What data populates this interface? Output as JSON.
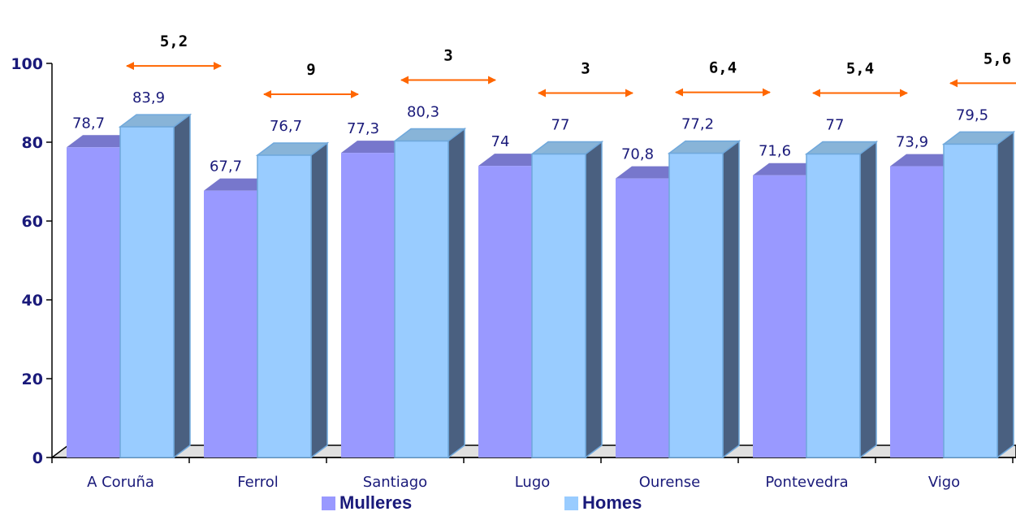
{
  "chart_data": {
    "type": "bar",
    "categories": [
      "A Coruña",
      "Ferrol",
      "Santiago",
      "Lugo",
      "Ourense",
      "Pontevedra",
      "Vigo"
    ],
    "series": [
      {
        "name": "Mulleres",
        "values": [
          78.7,
          67.7,
          77.3,
          74,
          70.8,
          71.6,
          73.9
        ],
        "labels": [
          "78,7",
          "67,7",
          "77,3",
          "74",
          "70,8",
          "71,6",
          "73,9"
        ],
        "color": "#9999ff"
      },
      {
        "name": "Homes",
        "values": [
          83.9,
          76.7,
          80.3,
          77,
          77.2,
          77,
          79.5
        ],
        "labels": [
          "83,9",
          "76,7",
          "80,3",
          "77",
          "77,2",
          "77",
          "79,5"
        ],
        "color": "#99ccff"
      }
    ],
    "differences": [
      "5,2",
      "9",
      "3",
      "3",
      "6,4",
      "5,4",
      "5,6"
    ],
    "ylim": [
      0,
      100
    ],
    "yticks": [
      "0",
      "20",
      "40",
      "60",
      "80",
      "100"
    ],
    "grid": false,
    "legend_position": "bottom",
    "arrow_color": "#ff6600"
  }
}
